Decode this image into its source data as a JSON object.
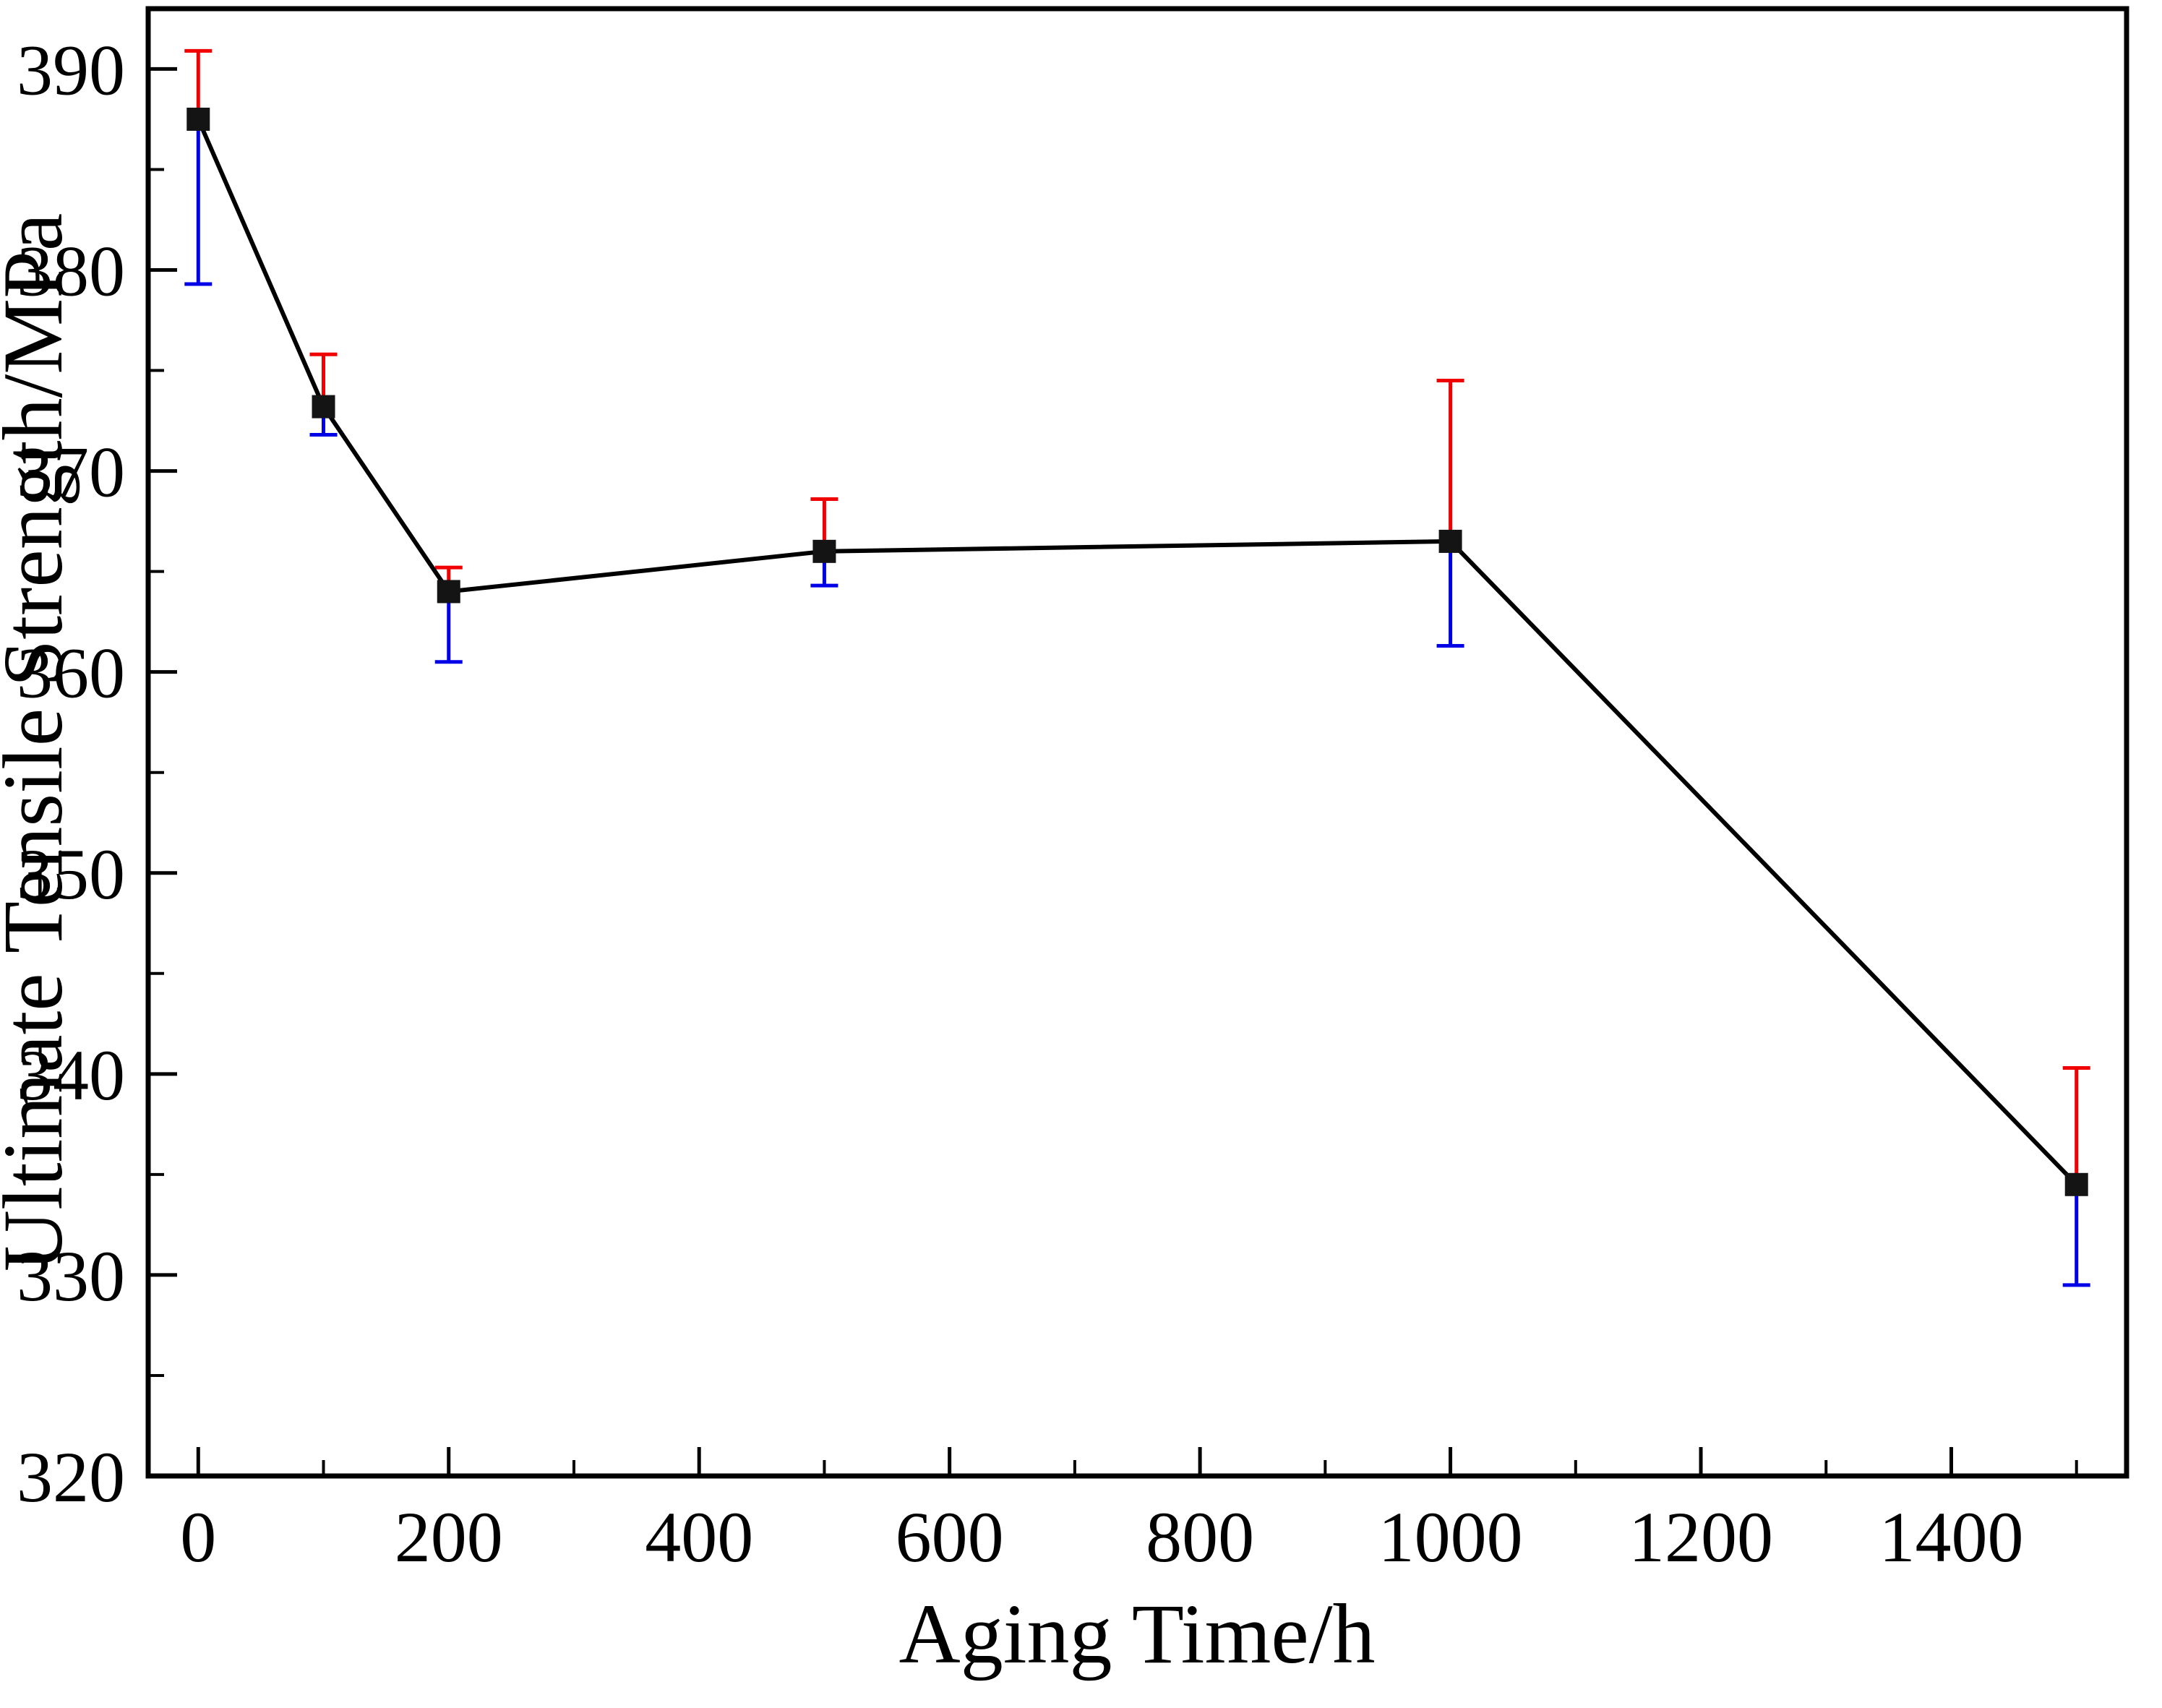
{
  "chart_data": {
    "type": "line",
    "title": "",
    "xlabel": "Aging Time/h",
    "ylabel": "Ultimate Tensile Strength/MPa",
    "x": [
      0,
      100,
      200,
      500,
      1000,
      1500
    ],
    "y": [
      387.5,
      373.2,
      364.0,
      366.0,
      366.5,
      334.5
    ],
    "error_upper": [
      3.4,
      2.6,
      1.2,
      2.6,
      8.0,
      5.8
    ],
    "error_lower": [
      8.2,
      1.4,
      3.5,
      1.7,
      5.2,
      5.0
    ],
    "xlim": [
      -40,
      1540
    ],
    "ylim": [
      320,
      393
    ],
    "xticks": [
      0,
      200,
      400,
      600,
      800,
      1000,
      1200,
      1400
    ],
    "yticks": [
      320,
      330,
      340,
      350,
      360,
      370,
      380,
      390
    ],
    "x_minor_step": 100,
    "y_minor_step": 5,
    "grid": false,
    "legend": "none",
    "marker": "square",
    "colors": {
      "line": "#000000",
      "marker": "#141414",
      "error_upper": "#f00000",
      "error_lower": "#0000e8",
      "axis": "#000000",
      "background": "#ffffff"
    }
  }
}
